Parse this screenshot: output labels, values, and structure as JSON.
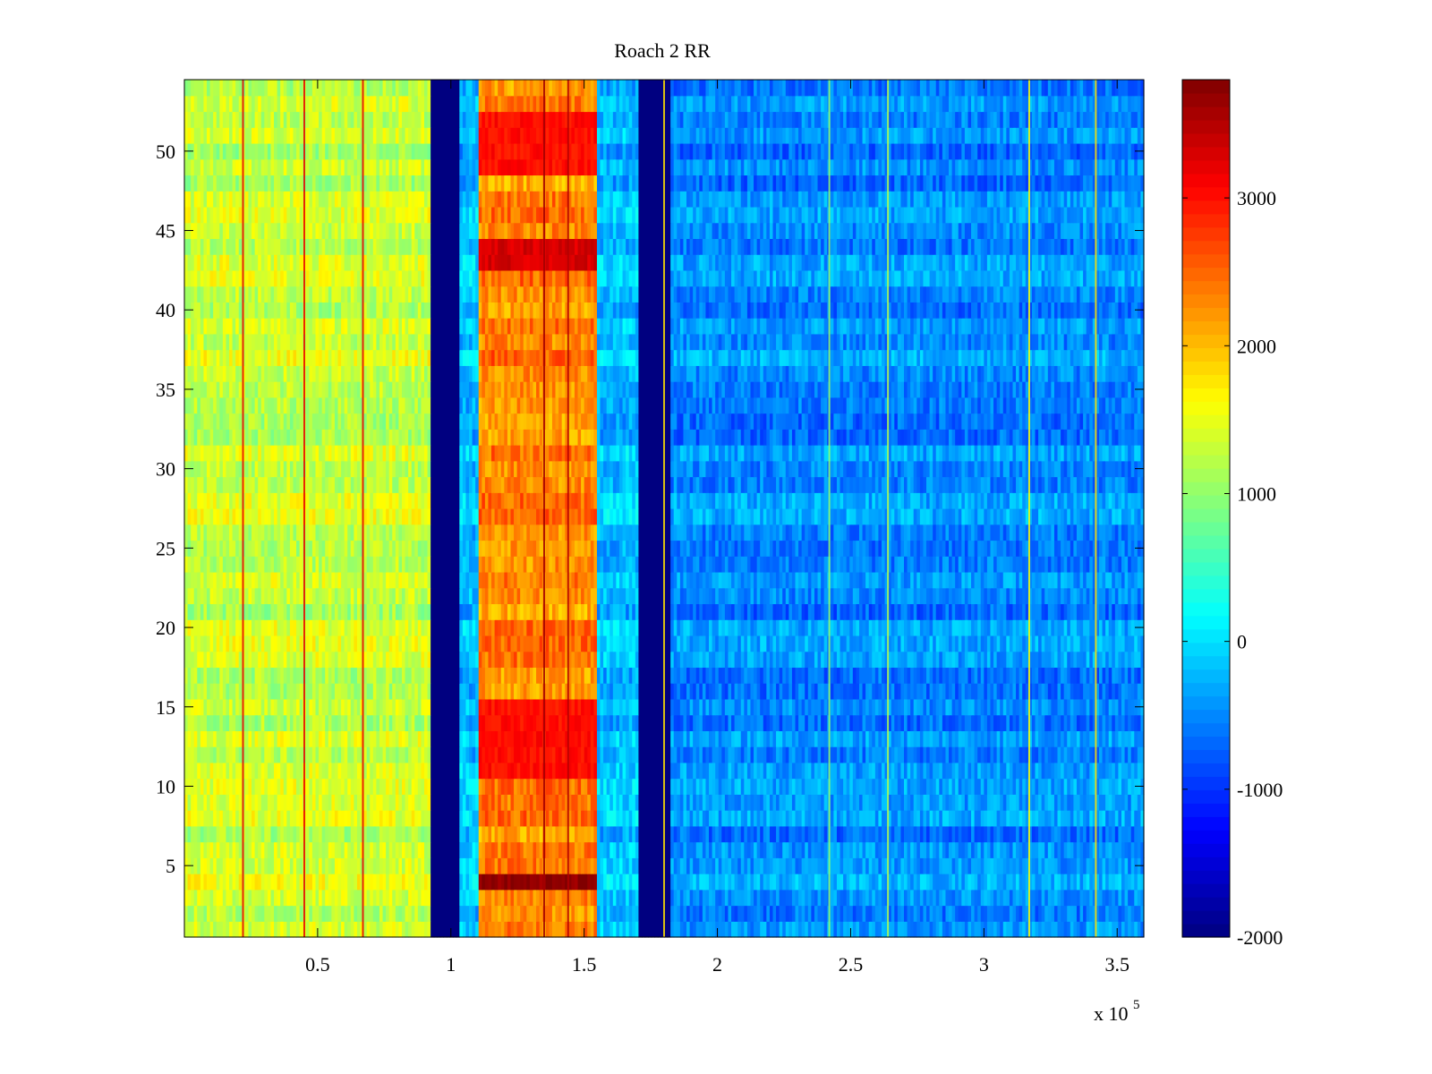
{
  "chart_data": {
    "type": "heatmap",
    "title": "Roach 2 RR",
    "xlabel": "",
    "ylabel": "",
    "x_scale_label": "x 10",
    "x_scale_exponent": "5",
    "xlim": [
      0,
      3.6
    ],
    "ylim": [
      0.5,
      54.5
    ],
    "x_ticks": [
      0.5,
      1,
      1.5,
      2,
      2.5,
      3,
      3.5
    ],
    "x_tick_labels": [
      "0.5",
      "1",
      "1.5",
      "2",
      "2.5",
      "3",
      "3.5"
    ],
    "y_ticks": [
      5,
      10,
      15,
      20,
      25,
      30,
      35,
      40,
      45,
      50
    ],
    "y_tick_labels": [
      "5",
      "10",
      "15",
      "20",
      "25",
      "30",
      "35",
      "40",
      "45",
      "50"
    ],
    "rows": 54,
    "colormap": "jet",
    "clim": [
      -2000,
      3800
    ],
    "colorbar": {
      "ticks": [
        -2000,
        -1000,
        0,
        1000,
        2000,
        3000
      ],
      "tick_labels": [
        "-2000",
        "-1000",
        "0",
        "1000",
        "2000",
        "3000"
      ],
      "placement": "right"
    },
    "x_unit_multiplier": 100000,
    "bands": [
      {
        "x_start": 0.0,
        "x_end": 0.93,
        "base_value": 1300
      },
      {
        "x_start": 0.93,
        "x_end": 1.03,
        "base_value": -2000
      },
      {
        "x_start": 1.03,
        "x_end": 1.11,
        "base_value": -200
      },
      {
        "x_start": 1.11,
        "x_end": 1.55,
        "base_value": 2300
      },
      {
        "x_start": 1.55,
        "x_end": 1.71,
        "base_value": -200
      },
      {
        "x_start": 1.71,
        "x_end": 1.83,
        "base_value": -2000
      },
      {
        "x_start": 1.83,
        "x_end": 3.6,
        "base_value": -500
      }
    ],
    "hot_rows": [
      {
        "rows": [
          4,
          4
        ],
        "value": 3700,
        "x_start": 1.11,
        "x_end": 1.55
      },
      {
        "rows": [
          11,
          15
        ],
        "value": 3000,
        "x_start": 1.11,
        "x_end": 1.55
      },
      {
        "rows": [
          43,
          44
        ],
        "value": 3300,
        "x_start": 1.11,
        "x_end": 1.55
      },
      {
        "rows": [
          49,
          52
        ],
        "value": 3000,
        "x_start": 1.11,
        "x_end": 1.55
      }
    ],
    "streaks": [
      {
        "x": 0.22,
        "value": 3200
      },
      {
        "x": 0.45,
        "value": 3200
      },
      {
        "x": 0.67,
        "value": 3200
      },
      {
        "x": 1.35,
        "value": 3600
      },
      {
        "x": 1.44,
        "value": 3500
      },
      {
        "x": 1.8,
        "value": 1800
      },
      {
        "x": 2.42,
        "value": 1000
      },
      {
        "x": 2.64,
        "value": 1200
      },
      {
        "x": 3.17,
        "value": 1600
      },
      {
        "x": 3.42,
        "value": 1800
      }
    ]
  }
}
